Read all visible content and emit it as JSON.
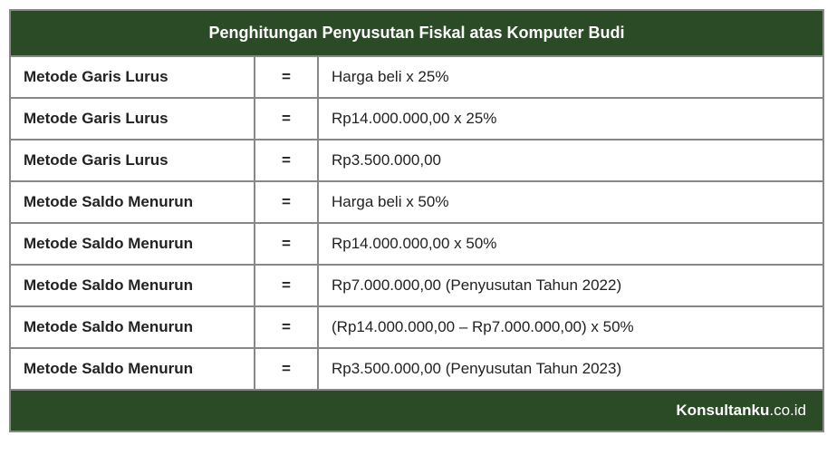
{
  "table": {
    "header_title": "Penghitungan Penyusutan Fiskal atas Komputer Budi",
    "header_bg": "#2b4b26",
    "header_text_color": "#ffffff",
    "border_color": "#888888",
    "cell_bg": "#ffffff",
    "cell_text_color": "#222222",
    "font_size_header": 18,
    "font_size_cell": 17,
    "col_widths": {
      "method": 270,
      "eq": 70
    },
    "rows": [
      {
        "method": "Metode Garis Lurus",
        "eq": "=",
        "value": "Harga beli x 25%"
      },
      {
        "method": "Metode Garis Lurus",
        "eq": "=",
        "value": "Rp14.000.000,00 x 25%"
      },
      {
        "method": "Metode Garis Lurus",
        "eq": "=",
        "value": "Rp3.500.000,00"
      },
      {
        "method": "Metode Saldo Menurun",
        "eq": "=",
        "value": "Harga beli x 50%"
      },
      {
        "method": "Metode Saldo Menurun",
        "eq": "=",
        "value": "Rp14.000.000,00 x 50%"
      },
      {
        "method": "Metode Saldo Menurun",
        "eq": "=",
        "value": "Rp7.000.000,00 (Penyusutan Tahun 2022)"
      },
      {
        "method": "Metode Saldo Menurun",
        "eq": "=",
        "value": "(Rp14.000.000,00 – Rp7.000.000,00) x 50%"
      },
      {
        "method": "Metode Saldo Menurun",
        "eq": "=",
        "value": "Rp3.500.000,00 (Penyusutan Tahun 2023)"
      }
    ],
    "footer": {
      "brand_main": "Konsultanku",
      "brand_ext": ".co.id",
      "bg": "#2b4b26",
      "text_color": "#ffffff"
    }
  }
}
